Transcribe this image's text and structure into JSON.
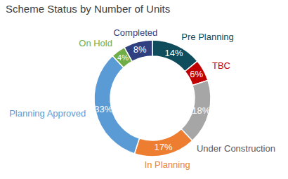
{
  "chart_data": {
    "type": "pie",
    "title": "Scheme Status by Number of Units",
    "categories": [
      "Pre Planning",
      "TBC",
      "Under Construction",
      "In Planning",
      "Planning Approved",
      "On Hold",
      "Completed"
    ],
    "values": [
      14,
      6,
      18,
      17,
      33,
      4,
      8
    ],
    "value_labels": [
      "14%",
      "6%",
      "18%",
      "17%",
      "33%",
      "4%",
      "8%"
    ],
    "colors": [
      "#0f4c5c",
      "#c00000",
      "#a6a6a6",
      "#ed7d31",
      "#5b9bd5",
      "#70ad47",
      "#2f3f80"
    ],
    "data_labels": true
  }
}
